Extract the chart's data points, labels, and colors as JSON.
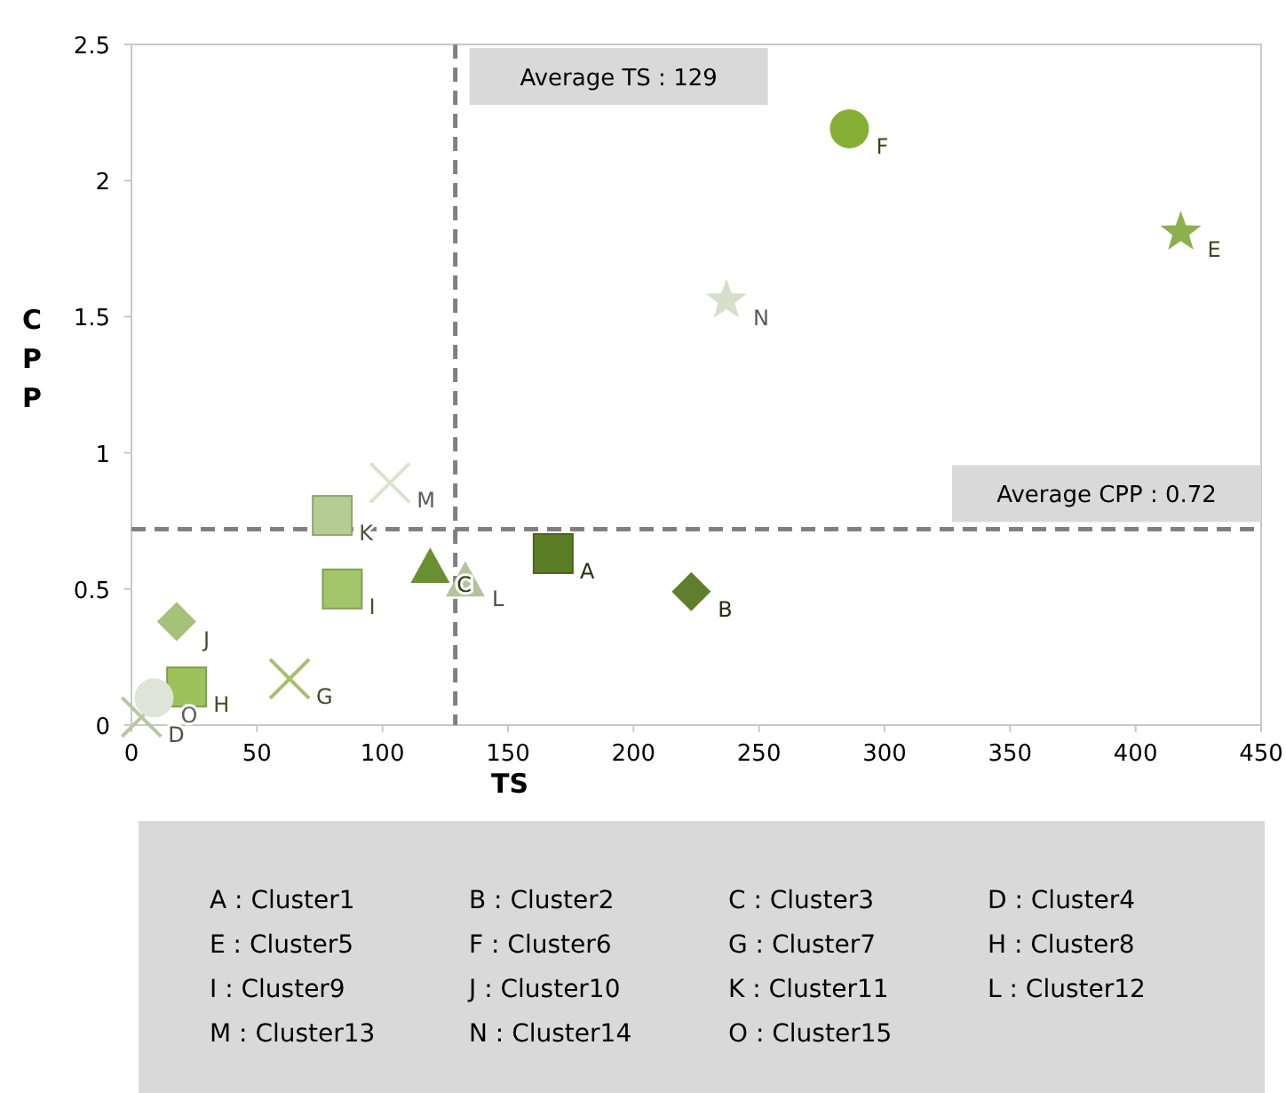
{
  "chart_data": {
    "type": "scatter",
    "xlabel": "TS",
    "ylabel": "CPP",
    "xlim": [
      0,
      450
    ],
    "ylim": [
      0,
      2.5
    ],
    "xticks": [
      0,
      50,
      100,
      150,
      200,
      250,
      300,
      350,
      400,
      450
    ],
    "yticks": [
      0,
      0.5,
      1,
      1.5,
      2,
      2.5
    ],
    "grid": false,
    "series": [
      {
        "name": "A",
        "color": "#5b7d26",
        "marker": "square",
        "x": [
          168
        ],
        "values": [
          0.63
        ]
      },
      {
        "name": "B",
        "color": "#5f7f2c",
        "marker": "diamond",
        "x": [
          223
        ],
        "values": [
          0.49
        ]
      },
      {
        "name": "C",
        "color": "#6a8f30",
        "marker": "triangle",
        "x": [
          119
        ],
        "values": [
          0.58
        ]
      },
      {
        "name": "D",
        "color": "#b9c7a0",
        "marker": "cross",
        "x": [
          4
        ],
        "values": [
          0.03
        ]
      },
      {
        "name": "E",
        "color": "#8db04f",
        "marker": "star",
        "x": [
          418
        ],
        "values": [
          1.81
        ]
      },
      {
        "name": "F",
        "color": "#86b033",
        "marker": "circle",
        "x": [
          286
        ],
        "values": [
          2.19
        ]
      },
      {
        "name": "G",
        "color": "#a6c06e",
        "marker": "cross",
        "x": [
          63
        ],
        "values": [
          0.17
        ]
      },
      {
        "name": "H",
        "color": "#9cc25c",
        "marker": "square",
        "x": [
          22
        ],
        "values": [
          0.14
        ]
      },
      {
        "name": "I",
        "color": "#a3c56a",
        "marker": "square",
        "x": [
          84
        ],
        "values": [
          0.5
        ]
      },
      {
        "name": "J",
        "color": "#a4c279",
        "marker": "diamond",
        "x": [
          18
        ],
        "values": [
          0.38
        ]
      },
      {
        "name": "K",
        "color": "#b5cc92",
        "marker": "square",
        "x": [
          80
        ],
        "values": [
          0.77
        ]
      },
      {
        "name": "L",
        "color": "#b0c59a",
        "marker": "triangle",
        "x": [
          133
        ],
        "values": [
          0.53
        ]
      },
      {
        "name": "M",
        "color": "#dbe3cf",
        "marker": "cross",
        "x": [
          103
        ],
        "values": [
          0.89
        ]
      },
      {
        "name": "N",
        "color": "#d6dfca",
        "marker": "star",
        "x": [
          237
        ],
        "values": [
          1.56
        ]
      },
      {
        "name": "O",
        "color": "#dfe5d6",
        "marker": "circle",
        "x": [
          9
        ],
        "values": [
          0.1
        ]
      }
    ],
    "ref_lines": [
      {
        "axis": "x",
        "value": 129,
        "label": "Average  TS : 129",
        "line_style": "dashed",
        "color": "#808080"
      },
      {
        "axis": "y",
        "value": 0.72,
        "label": "Average  CPP : 0.72",
        "line_style": "dashed",
        "color": "#808080"
      }
    ],
    "annotations": [
      "A : Cluster1",
      "B : Cluster2",
      "C : Cluster3",
      "D : Cluster4",
      "E : Cluster5",
      "F : Cluster6",
      "G : Cluster7",
      "H : Cluster8",
      "I : Cluster9",
      "J : Cluster10",
      "K : Cluster11",
      "L : Cluster12",
      "M : Cluster13",
      "N : Cluster14",
      "O : Cluster15"
    ]
  }
}
